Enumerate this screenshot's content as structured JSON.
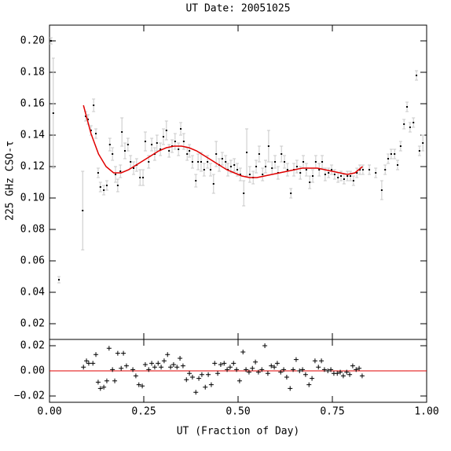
{
  "chart_data": [
    {
      "type": "errorbar",
      "title": "UT Date: 20051025",
      "y_label": "225 GHz CSO-τ",
      "xlim": [
        0,
        1
      ],
      "ylim": [
        0.01,
        0.21
      ],
      "yticks": [
        {
          "value": 0.02,
          "label": "0.02"
        },
        {
          "value": 0.04,
          "label": "0.04"
        },
        {
          "value": 0.06,
          "label": "0.06"
        },
        {
          "value": 0.08,
          "label": "0.08"
        },
        {
          "value": 0.1,
          "label": "0.10"
        },
        {
          "value": 0.12,
          "label": "0.12"
        },
        {
          "value": 0.14,
          "label": "0.14"
        },
        {
          "value": 0.16,
          "label": "0.16"
        },
        {
          "value": 0.18,
          "label": "0.18"
        },
        {
          "value": 0.2,
          "label": "0.20"
        }
      ],
      "color": "#000000",
      "error_color": "#c8c8c8",
      "x": [
        0.004,
        0.01,
        0.025,
        0.088,
        0.096,
        0.102,
        0.11,
        0.117,
        0.123,
        0.129,
        0.135,
        0.144,
        0.152,
        0.16,
        0.167,
        0.175,
        0.181,
        0.188,
        0.192,
        0.2,
        0.208,
        0.215,
        0.223,
        0.231,
        0.24,
        0.248,
        0.254,
        0.263,
        0.271,
        0.279,
        0.285,
        0.294,
        0.302,
        0.31,
        0.317,
        0.325,
        0.333,
        0.342,
        0.348,
        0.356,
        0.365,
        0.371,
        0.379,
        0.388,
        0.394,
        0.402,
        0.41,
        0.419,
        0.427,
        0.435,
        0.442,
        0.45,
        0.458,
        0.467,
        0.473,
        0.481,
        0.49,
        0.498,
        0.506,
        0.515,
        0.523,
        0.531,
        0.54,
        0.548,
        0.556,
        0.565,
        0.573,
        0.581,
        0.59,
        0.598,
        0.606,
        0.615,
        0.623,
        0.631,
        0.64,
        0.648,
        0.656,
        0.665,
        0.673,
        0.681,
        0.69,
        0.698,
        0.706,
        0.715,
        0.723,
        0.731,
        0.74,
        0.748,
        0.756,
        0.765,
        0.773,
        0.781,
        0.79,
        0.798,
        0.806,
        0.815,
        0.823,
        0.831,
        0.848,
        0.865,
        0.881,
        0.89,
        0.898,
        0.906,
        0.915,
        0.923,
        0.931,
        0.94,
        0.948,
        0.956,
        0.965,
        0.973,
        0.981,
        0.99
      ],
      "values": [
        0.2,
        0.154,
        0.048,
        0.092,
        0.152,
        0.15,
        0.143,
        0.159,
        0.141,
        0.116,
        0.107,
        0.105,
        0.108,
        0.134,
        0.128,
        0.115,
        0.108,
        0.117,
        0.142,
        0.13,
        0.134,
        0.123,
        0.119,
        0.121,
        0.113,
        0.113,
        0.136,
        0.123,
        0.134,
        0.128,
        0.135,
        0.131,
        0.139,
        0.143,
        0.13,
        0.133,
        0.136,
        0.131,
        0.144,
        0.136,
        0.128,
        0.13,
        0.123,
        0.111,
        0.123,
        0.123,
        0.118,
        0.123,
        0.118,
        0.109,
        0.128,
        0.121,
        0.125,
        0.123,
        0.118,
        0.12,
        0.121,
        0.118,
        0.115,
        0.103,
        0.129,
        0.115,
        0.113,
        0.12,
        0.128,
        0.115,
        0.12,
        0.133,
        0.119,
        0.123,
        0.116,
        0.128,
        0.123,
        0.118,
        0.103,
        0.118,
        0.12,
        0.116,
        0.123,
        0.118,
        0.11,
        0.114,
        0.123,
        0.118,
        0.123,
        0.115,
        0.116,
        0.118,
        0.115,
        0.113,
        0.114,
        0.112,
        0.114,
        0.114,
        0.111,
        0.116,
        0.118,
        0.118,
        0.118,
        0.116,
        0.105,
        0.118,
        0.125,
        0.128,
        0.128,
        0.121,
        0.133,
        0.147,
        0.158,
        0.145,
        0.148,
        0.178,
        0.13,
        0.135
      ],
      "errors": [
        0.002,
        0.035,
        0.002,
        0.025,
        0.003,
        0.003,
        0.003,
        0.004,
        0.003,
        0.003,
        0.003,
        0.003,
        0.003,
        0.004,
        0.004,
        0.005,
        0.004,
        0.004,
        0.009,
        0.005,
        0.004,
        0.004,
        0.004,
        0.004,
        0.005,
        0.005,
        0.006,
        0.004,
        0.004,
        0.004,
        0.005,
        0.004,
        0.005,
        0.006,
        0.004,
        0.004,
        0.005,
        0.004,
        0.004,
        0.005,
        0.004,
        0.004,
        0.004,
        0.004,
        0.005,
        0.006,
        0.004,
        0.004,
        0.004,
        0.006,
        0.008,
        0.004,
        0.004,
        0.004,
        0.004,
        0.004,
        0.004,
        0.004,
        0.004,
        0.008,
        0.015,
        0.005,
        0.004,
        0.004,
        0.005,
        0.004,
        0.004,
        0.01,
        0.004,
        0.004,
        0.004,
        0.005,
        0.004,
        0.004,
        0.003,
        0.004,
        0.004,
        0.004,
        0.004,
        0.004,
        0.004,
        0.004,
        0.004,
        0.004,
        0.004,
        0.004,
        0.003,
        0.003,
        0.003,
        0.003,
        0.003,
        0.003,
        0.003,
        0.003,
        0.003,
        0.003,
        0.003,
        0.003,
        0.003,
        0.003,
        0.006,
        0.003,
        0.003,
        0.003,
        0.003,
        0.003,
        0.003,
        0.003,
        0.003,
        0.003,
        0.003,
        0.003,
        0.003,
        0.005
      ],
      "fit": {
        "color": "#e00000",
        "x": [
          0.09,
          0.11,
          0.13,
          0.15,
          0.17,
          0.19,
          0.21,
          0.23,
          0.25,
          0.27,
          0.29,
          0.31,
          0.33,
          0.35,
          0.37,
          0.39,
          0.41,
          0.43,
          0.45,
          0.47,
          0.49,
          0.51,
          0.53,
          0.55,
          0.57,
          0.59,
          0.61,
          0.63,
          0.65,
          0.67,
          0.69,
          0.71,
          0.73,
          0.75,
          0.77,
          0.79,
          0.81,
          0.83
        ],
        "values": [
          0.159,
          0.141,
          0.128,
          0.12,
          0.116,
          0.116,
          0.118,
          0.121,
          0.124,
          0.127,
          0.13,
          0.132,
          0.133,
          0.133,
          0.132,
          0.13,
          0.127,
          0.124,
          0.121,
          0.118,
          0.116,
          0.114,
          0.113,
          0.113,
          0.114,
          0.115,
          0.116,
          0.117,
          0.118,
          0.119,
          0.119,
          0.119,
          0.118,
          0.117,
          0.116,
          0.115,
          0.116,
          0.12
        ]
      }
    },
    {
      "type": "residual",
      "x_label": "UT (Fraction of Day)",
      "xlim": [
        0,
        1
      ],
      "xticks": [
        {
          "value": 0,
          "label": "0.00"
        },
        {
          "value": 0.25,
          "label": "0.25"
        },
        {
          "value": 0.5,
          "label": "0.50"
        },
        {
          "value": 0.75,
          "label": "0.75"
        },
        {
          "value": 1,
          "label": "1.00"
        }
      ],
      "ylim": [
        -0.025,
        0.025
      ],
      "yticks": [
        {
          "value": -0.02,
          "label": "−0.02"
        },
        {
          "value": 0,
          "label": "0.00"
        },
        {
          "value": 0.02,
          "label": "0.02"
        }
      ],
      "color": "#000000",
      "zero_line_color": "#e00000",
      "x": [
        0.09,
        0.098,
        0.104,
        0.115,
        0.123,
        0.129,
        0.135,
        0.144,
        0.152,
        0.158,
        0.167,
        0.173,
        0.181,
        0.19,
        0.196,
        0.204,
        0.221,
        0.229,
        0.237,
        0.246,
        0.254,
        0.263,
        0.271,
        0.279,
        0.288,
        0.296,
        0.304,
        0.313,
        0.321,
        0.329,
        0.338,
        0.346,
        0.354,
        0.363,
        0.371,
        0.379,
        0.388,
        0.396,
        0.404,
        0.413,
        0.421,
        0.429,
        0.438,
        0.446,
        0.454,
        0.463,
        0.471,
        0.479,
        0.488,
        0.496,
        0.504,
        0.513,
        0.521,
        0.529,
        0.538,
        0.546,
        0.554,
        0.563,
        0.571,
        0.579,
        0.588,
        0.596,
        0.604,
        0.613,
        0.621,
        0.629,
        0.638,
        0.646,
        0.654,
        0.663,
        0.671,
        0.679,
        0.688,
        0.696,
        0.704,
        0.713,
        0.721,
        0.729,
        0.738,
        0.746,
        0.754,
        0.763,
        0.771,
        0.779,
        0.788,
        0.796,
        0.804,
        0.813,
        0.821,
        0.829
      ],
      "values": [
        0.003,
        0.008,
        0.006,
        0.006,
        0.013,
        -0.009,
        -0.014,
        -0.013,
        -0.008,
        0.018,
        0.001,
        -0.008,
        0.014,
        0.002,
        0.014,
        0.004,
        0.001,
        -0.004,
        -0.011,
        -0.012,
        0.005,
        0.001,
        0.006,
        0.003,
        0.006,
        0.003,
        0.008,
        0.013,
        0.003,
        0.005,
        0.003,
        0.01,
        0.004,
        -0.007,
        -0.002,
        -0.005,
        -0.017,
        -0.006,
        -0.003,
        -0.013,
        -0.003,
        -0.011,
        0.006,
        -0.002,
        0.005,
        0.006,
        0.001,
        0.003,
        0.006,
        0.001,
        -0.008,
        0.015,
        0.001,
        -0.001,
        0.002,
        0.007,
        -0.001,
        0.001,
        0.02,
        -0.002,
        0.004,
        0.003,
        0.006,
        -0.001,
        0.001,
        -0.005,
        -0.014,
        0.001,
        0.009,
        0,
        0.001,
        -0.003,
        -0.011,
        -0.006,
        0.008,
        0.003,
        0.008,
        0.001,
        0,
        0.001,
        -0.002,
        -0.002,
        -0.001,
        -0.004,
        -0.001,
        -0.003,
        0.004,
        0.001,
        0.002,
        -0.004
      ]
    }
  ]
}
